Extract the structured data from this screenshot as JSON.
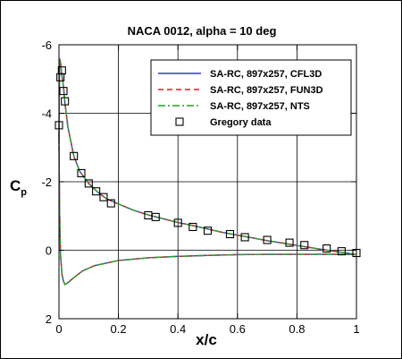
{
  "chart_data": {
    "type": "line",
    "title": "NACA 0012, alpha = 10 deg",
    "xlabel": "x/c",
    "ylabel": "C",
    "ylabel_sub": "p",
    "xlim": [
      0,
      1
    ],
    "ylim": [
      -6,
      2
    ],
    "y_inverted": true,
    "grid": true,
    "legend_position": "top-right",
    "x_ticks": [
      0,
      0.2,
      0.4,
      0.6,
      0.8,
      1
    ],
    "x_tick_labels": [
      "0",
      "0.2",
      "0.4",
      "0.6",
      "0.8",
      "1"
    ],
    "y_ticks": [
      -6,
      -4,
      -2,
      0,
      2
    ],
    "y_tick_labels": [
      "-6",
      "-4",
      "-2",
      "0",
      "2"
    ],
    "series": [
      {
        "name": "SA-RC, 897x257, CFL3D",
        "color": "#2f3fbf",
        "dash": "solid",
        "upper": {
          "x": [
            0,
            0.002,
            0.005,
            0.01,
            0.015,
            0.02,
            0.03,
            0.05,
            0.07,
            0.1,
            0.13,
            0.16,
            0.2,
            0.25,
            0.3,
            0.35,
            0.4,
            0.45,
            0.5,
            0.55,
            0.6,
            0.65,
            0.7,
            0.75,
            0.8,
            0.85,
            0.9,
            0.95,
            0.98,
            1.0
          ],
          "y": [
            -3.3,
            -5.6,
            -5.5,
            -5.1,
            -4.8,
            -4.3,
            -3.6,
            -2.75,
            -2.3,
            -1.95,
            -1.7,
            -1.5,
            -1.35,
            -1.17,
            -1.03,
            -0.92,
            -0.81,
            -0.72,
            -0.62,
            -0.52,
            -0.44,
            -0.36,
            -0.28,
            -0.21,
            -0.14,
            -0.07,
            0.0,
            0.06,
            0.1,
            0.13
          ]
        },
        "lower": {
          "x": [
            0,
            0.002,
            0.005,
            0.01,
            0.015,
            0.02,
            0.03,
            0.05,
            0.08,
            0.12,
            0.2,
            0.3,
            0.4,
            0.5,
            0.6,
            0.7,
            0.8,
            0.9,
            0.95,
            1.0
          ],
          "y": [
            -3.3,
            -1.2,
            0.1,
            0.7,
            0.9,
            1.0,
            0.95,
            0.8,
            0.6,
            0.45,
            0.3,
            0.22,
            0.18,
            0.15,
            0.13,
            0.12,
            0.12,
            0.12,
            0.12,
            0.13
          ]
        }
      },
      {
        "name": "SA-RC, 897x257, FUN3D",
        "color": "#d42020",
        "dash": "6 4",
        "upper": {
          "x": [
            0,
            0.002,
            0.005,
            0.01,
            0.015,
            0.02,
            0.03,
            0.05,
            0.07,
            0.1,
            0.13,
            0.16,
            0.2,
            0.25,
            0.3,
            0.35,
            0.4,
            0.45,
            0.5,
            0.55,
            0.6,
            0.65,
            0.7,
            0.75,
            0.8,
            0.85,
            0.9,
            0.95,
            0.98,
            1.0
          ],
          "y": [
            -3.3,
            -5.6,
            -5.5,
            -5.1,
            -4.8,
            -4.3,
            -3.6,
            -2.75,
            -2.3,
            -1.95,
            -1.7,
            -1.5,
            -1.35,
            -1.17,
            -1.03,
            -0.92,
            -0.81,
            -0.72,
            -0.62,
            -0.52,
            -0.44,
            -0.36,
            -0.28,
            -0.21,
            -0.14,
            -0.07,
            0.0,
            0.06,
            0.1,
            0.13
          ]
        },
        "lower": {
          "x": [
            0,
            0.002,
            0.005,
            0.01,
            0.015,
            0.02,
            0.03,
            0.05,
            0.08,
            0.12,
            0.2,
            0.3,
            0.4,
            0.5,
            0.6,
            0.7,
            0.8,
            0.9,
            0.95,
            1.0
          ],
          "y": [
            -3.3,
            -1.2,
            0.1,
            0.7,
            0.9,
            1.0,
            0.95,
            0.8,
            0.6,
            0.45,
            0.3,
            0.22,
            0.18,
            0.15,
            0.13,
            0.12,
            0.12,
            0.12,
            0.12,
            0.13
          ]
        }
      },
      {
        "name": "SA-RC, 897x257, NTS",
        "color": "#28a028",
        "dash": "8 3 2 3",
        "upper": {
          "x": [
            0,
            0.002,
            0.005,
            0.01,
            0.015,
            0.02,
            0.03,
            0.05,
            0.07,
            0.1,
            0.13,
            0.16,
            0.2,
            0.25,
            0.3,
            0.35,
            0.4,
            0.45,
            0.5,
            0.55,
            0.6,
            0.65,
            0.7,
            0.75,
            0.8,
            0.85,
            0.9,
            0.95,
            0.98,
            1.0
          ],
          "y": [
            -3.3,
            -5.6,
            -5.5,
            -5.1,
            -4.8,
            -4.3,
            -3.6,
            -2.75,
            -2.3,
            -1.95,
            -1.7,
            -1.5,
            -1.35,
            -1.17,
            -1.03,
            -0.92,
            -0.81,
            -0.72,
            -0.62,
            -0.52,
            -0.44,
            -0.36,
            -0.28,
            -0.21,
            -0.14,
            -0.07,
            0.0,
            0.06,
            0.1,
            0.13
          ]
        },
        "lower": {
          "x": [
            0,
            0.002,
            0.005,
            0.01,
            0.015,
            0.02,
            0.03,
            0.05,
            0.08,
            0.12,
            0.2,
            0.3,
            0.4,
            0.5,
            0.6,
            0.7,
            0.8,
            0.9,
            0.95,
            1.0
          ],
          "y": [
            -3.3,
            -1.2,
            0.1,
            0.7,
            0.9,
            1.0,
            0.95,
            0.8,
            0.6,
            0.45,
            0.3,
            0.22,
            0.18,
            0.15,
            0.13,
            0.12,
            0.12,
            0.12,
            0.12,
            0.13
          ]
        }
      }
    ],
    "markers": {
      "name": "Gregory data",
      "shape": "open-square",
      "x": [
        0.0,
        0.005,
        0.01,
        0.015,
        0.02,
        0.05,
        0.075,
        0.1,
        0.125,
        0.15,
        0.175,
        0.3,
        0.325,
        0.4,
        0.45,
        0.5,
        0.575,
        0.625,
        0.7,
        0.775,
        0.825,
        0.9,
        0.95,
        1.0
      ],
      "y": [
        -3.65,
        -5.05,
        -5.25,
        -4.65,
        -4.35,
        -2.75,
        -2.25,
        -1.95,
        -1.72,
        -1.55,
        -1.37,
        -1.02,
        -0.97,
        -0.8,
        -0.68,
        -0.57,
        -0.47,
        -0.38,
        -0.3,
        -0.22,
        -0.15,
        -0.05,
        0.03,
        0.08
      ]
    }
  }
}
